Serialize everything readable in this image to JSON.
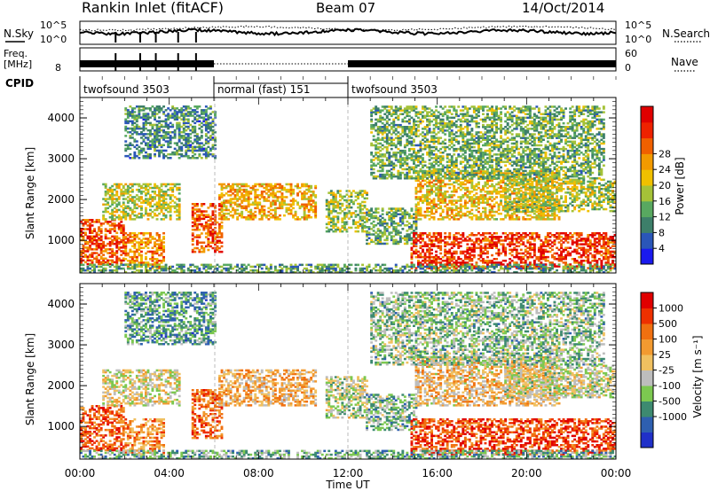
{
  "header": {
    "title": "Rankin Inlet (fitACF)",
    "beam": "Beam 07",
    "date": "14/Oct/2014"
  },
  "top_panels": {
    "nsky_label": "N.Sky",
    "nsearch_label": "N.Search",
    "noise_ticks": [
      "10^5",
      "10^0"
    ],
    "freq_label": "Freq.",
    "freq_unit": "[MHz]",
    "freq_ticks": [
      "8"
    ],
    "nave_label": "Nave",
    "nave_ticks": [
      "60",
      "0"
    ],
    "cpid_label": "CPID",
    "cpid_segments": [
      {
        "label": "twofsound 3503",
        "start_h": 0,
        "end_h": 6
      },
      {
        "label": "normal (fast) 151",
        "start_h": 6,
        "end_h": 12
      },
      {
        "label": "twofsound 3503",
        "start_h": 12,
        "end_h": 24
      }
    ]
  },
  "chart_data": [
    {
      "type": "heatmap",
      "name": "power",
      "ylabel": "Slant Range [km]",
      "yticks": [
        "1000",
        "2000",
        "3000",
        "4000"
      ],
      "ylim": [
        200,
        4500
      ],
      "xlim": [
        0,
        24
      ],
      "colorbar": {
        "label": "Power [dB]",
        "ticks": [
          "4",
          "8",
          "12",
          "16",
          "20",
          "24",
          "28"
        ],
        "colors": [
          "#1a1aee",
          "#2a56b8",
          "#3d7f6a",
          "#58a860",
          "#a5c238",
          "#f0c000",
          "#f29a00",
          "#f06000",
          "#ee2200",
          "#e00000"
        ]
      }
    },
    {
      "type": "heatmap",
      "name": "velocity",
      "ylabel": "Slant Range [km]",
      "yticks": [
        "1000",
        "2000",
        "3000",
        "4000"
      ],
      "ylim": [
        200,
        4500
      ],
      "xlim": [
        0,
        24
      ],
      "xlabel": "Time UT",
      "xticks": [
        "00:00",
        "04:00",
        "08:00",
        "12:00",
        "16:00",
        "20:00",
        "00:00"
      ],
      "colorbar": {
        "label": "Velocity [m s⁻¹]",
        "ticks": [
          "1000",
          "500",
          "100",
          "25",
          "-25",
          "-100",
          "-500",
          "-1000"
        ],
        "colors": [
          "#2030c8",
          "#2e5fb0",
          "#3d8a70",
          "#7cc850",
          "#bdbdbd",
          "#f0c060",
          "#f29a30",
          "#f07010",
          "#ee3000",
          "#e00000"
        ]
      }
    }
  ]
}
